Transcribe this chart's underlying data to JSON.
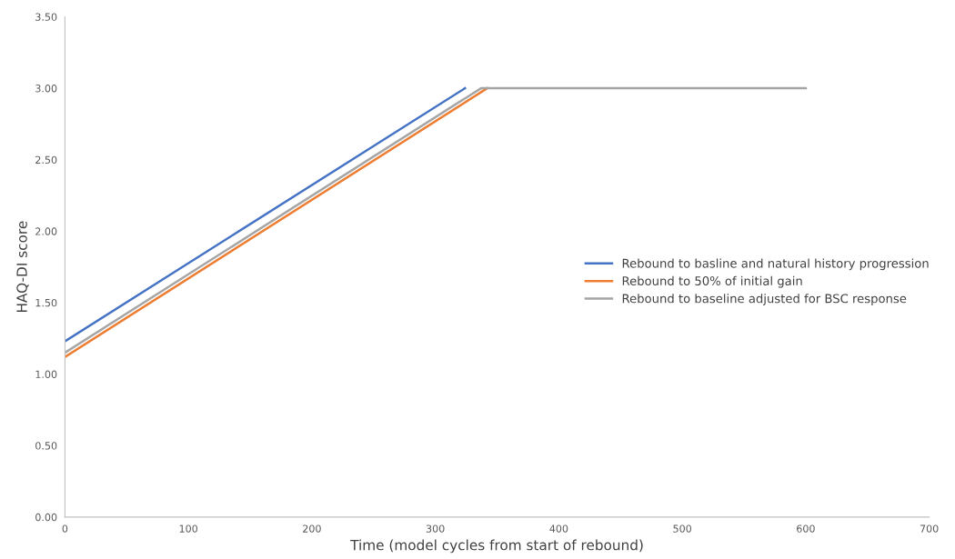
{
  "chart_data": {
    "type": "line",
    "xlabel": "Time (model cycles from start of rebound)",
    "ylabel": "HAQ-DI score",
    "xlim": [
      0,
      700
    ],
    "xticks": [
      0,
      100,
      200,
      300,
      400,
      500,
      600,
      700
    ],
    "ylim": [
      0,
      3.5
    ],
    "yticks": [
      {
        "value": 0,
        "label": "0.00"
      },
      {
        "value": 0.5,
        "label": "0.50"
      },
      {
        "value": 1,
        "label": "1.00"
      },
      {
        "value": 1.5,
        "label": "1.50"
      },
      {
        "value": 2,
        "label": "2.00"
      },
      {
        "value": 2.5,
        "label": "2.50"
      },
      {
        "value": 3,
        "label": "3.00"
      },
      {
        "value": 3.5,
        "label": "3.50"
      }
    ],
    "grid": false,
    "legend": "right",
    "marker": "none",
    "line_style": "solid",
    "series": [
      {
        "name": "Rebound to basline and natural history progression",
        "color": "#4472c4",
        "x": [
          0,
          324
        ],
        "values": [
          1.23,
          3.0
        ]
      },
      {
        "name": "Rebound to 50% of initial gain",
        "color": "#ed7d31",
        "x": [
          0,
          342
        ],
        "values": [
          1.12,
          3.0
        ]
      },
      {
        "name": "Rebound to baseline adjusted for BSC response",
        "color": "#a5a5a5",
        "x": [
          0,
          337,
          600
        ],
        "values": [
          1.15,
          3.0,
          3.0
        ]
      }
    ]
  }
}
